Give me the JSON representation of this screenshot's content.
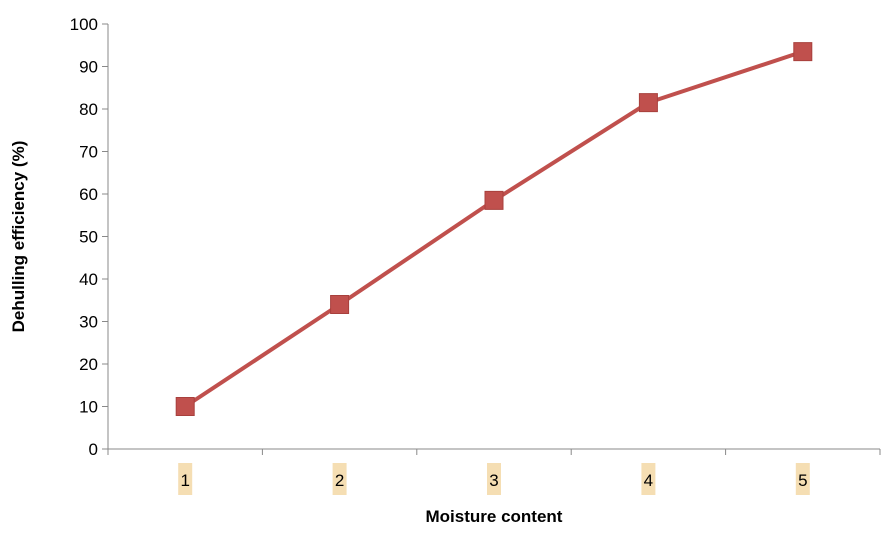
{
  "chart_data": {
    "type": "line",
    "categories": [
      "1",
      "2",
      "3",
      "4",
      "5"
    ],
    "series": [
      {
        "values": [
          10,
          34,
          58.5,
          81.5,
          93.5
        ],
        "color": "#c0504d",
        "marker": "square"
      }
    ],
    "title": "",
    "xlabel": "Moisture content",
    "ylabel": "Dehulling efficiency (%)",
    "ylim": [
      0,
      100
    ],
    "yticks": [
      0,
      10,
      20,
      30,
      40,
      50,
      60,
      70,
      80,
      90,
      100
    ],
    "grid": false,
    "legend": "none",
    "x_tick_label_highlight": "#f5deb3"
  }
}
